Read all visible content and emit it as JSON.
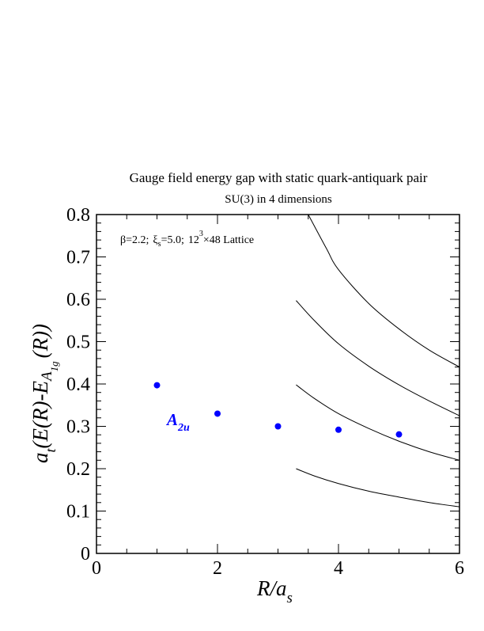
{
  "chart_data": {
    "type": "scatter",
    "title": "Gauge field energy gap with static quark-antiquark pair",
    "subtitle": "SU(3) in 4 dimensions",
    "xlabel": {
      "main": "R/a",
      "sub": "s"
    },
    "ylabel": {
      "a": "a",
      "t": "t",
      "mid": "(E(R)-E",
      "A": "A",
      "sub": "1g",
      "end": "(R))"
    },
    "annotation": {
      "beta": "β=2.2;",
      "xi": "ξ",
      "xi_sub": "s",
      "xi_val": "=5.0;",
      "lattice_a": "12",
      "lattice_exp": "3",
      "lattice_b": "×48 Lattice"
    },
    "xlim": [
      0,
      6
    ],
    "ylim": [
      0,
      0.8
    ],
    "x_ticks": [
      0,
      2,
      4,
      6
    ],
    "x_tick_labels": [
      "0",
      "2",
      "4",
      "6"
    ],
    "y_ticks": [
      0,
      0.1,
      0.2,
      0.3,
      0.4,
      0.5,
      0.6,
      0.7,
      0.8
    ],
    "y_tick_labels": [
      "0",
      "0.1",
      "0.2",
      "0.3",
      "0.4",
      "0.5",
      "0.6",
      "0.7",
      "0.8"
    ],
    "series": [
      {
        "name": "A2u",
        "label_main": "A",
        "label_sub": "2u",
        "color": "#0000ff",
        "x": [
          1,
          2,
          3,
          4,
          5
        ],
        "y": [
          0.397,
          0.33,
          0.3,
          0.292,
          0.281
        ]
      }
    ],
    "curves": [
      {
        "x": [
          3.3,
          3.6,
          4.0,
          4.5,
          5.0,
          5.5,
          6.0
        ],
        "y": [
          0.2,
          0.183,
          0.165,
          0.147,
          0.133,
          0.12,
          0.11
        ]
      },
      {
        "x": [
          3.3,
          3.6,
          4.0,
          4.5,
          5.0,
          5.5,
          6.0
        ],
        "y": [
          0.398,
          0.366,
          0.33,
          0.295,
          0.265,
          0.24,
          0.22
        ]
      },
      {
        "x": [
          3.3,
          3.6,
          4.0,
          4.5,
          5.0,
          5.5,
          6.0
        ],
        "y": [
          0.597,
          0.55,
          0.495,
          0.442,
          0.398,
          0.36,
          0.325
        ]
      },
      {
        "x": [
          3.5,
          3.8,
          4.0,
          4.5,
          5.0,
          5.5,
          6.0
        ],
        "y": [
          0.8,
          0.72,
          0.67,
          0.59,
          0.53,
          0.48,
          0.44
        ]
      }
    ],
    "grid": false,
    "legend": "none"
  }
}
